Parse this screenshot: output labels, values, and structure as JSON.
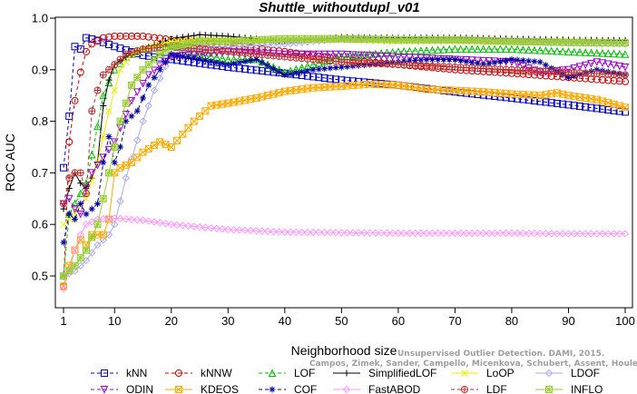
{
  "chart_data": {
    "type": "line",
    "title": "Shuttle_withoutdupl_v01",
    "xlabel": "Neighborhood size",
    "ylabel": "ROC AUC",
    "xlim": [
      1,
      100
    ],
    "ylim": [
      0.46,
      1.0
    ],
    "xticks": [
      1,
      10,
      20,
      30,
      40,
      50,
      60,
      70,
      80,
      90,
      100
    ],
    "yticks": [
      0.5,
      0.6,
      0.7,
      0.8,
      0.9,
      1.0
    ],
    "grid": false,
    "legend_position": "bottom",
    "watermark": [
      "Unsupervised Outlier Detection. DAMI, 2015.",
      "Campos, Zimek, Sander, Campello, Micenkova, Schubert, Assent, Houle"
    ],
    "series": [
      {
        "name": "kNN",
        "color": "#0000cc",
        "marker": "square",
        "dash": "4,3",
        "points": [
          [
            1,
            0.71
          ],
          [
            2,
            0.81
          ],
          [
            3,
            0.945
          ],
          [
            4,
            0.94
          ],
          [
            5,
            0.962
          ],
          [
            7,
            0.957
          ],
          [
            10,
            0.945
          ],
          [
            15,
            0.928
          ],
          [
            20,
            0.92
          ],
          [
            30,
            0.905
          ],
          [
            40,
            0.893
          ],
          [
            50,
            0.88
          ],
          [
            60,
            0.87
          ],
          [
            70,
            0.857
          ],
          [
            80,
            0.845
          ],
          [
            90,
            0.832
          ],
          [
            100,
            0.818
          ]
        ]
      },
      {
        "name": "kNNW",
        "color": "#cc0000",
        "marker": "circle",
        "dash": "4,3",
        "points": [
          [
            1,
            0.48
          ],
          [
            2,
            0.76
          ],
          [
            3,
            0.84
          ],
          [
            4,
            0.895
          ],
          [
            5,
            0.935
          ],
          [
            6,
            0.95
          ],
          [
            8,
            0.962
          ],
          [
            10,
            0.965
          ],
          [
            15,
            0.965
          ],
          [
            20,
            0.958
          ],
          [
            30,
            0.948
          ],
          [
            40,
            0.935
          ],
          [
            50,
            0.92
          ],
          [
            60,
            0.91
          ],
          [
            70,
            0.9
          ],
          [
            80,
            0.893
          ],
          [
            90,
            0.885
          ],
          [
            100,
            0.877
          ]
        ]
      },
      {
        "name": "LOF",
        "color": "#00bb00",
        "marker": "triangle",
        "dash": "4,3",
        "points": [
          [
            1,
            0.5
          ],
          [
            2,
            0.62
          ],
          [
            3,
            0.64
          ],
          [
            4,
            0.66
          ],
          [
            5,
            0.68
          ],
          [
            7,
            0.79
          ],
          [
            8,
            0.85
          ],
          [
            10,
            0.9
          ],
          [
            12,
            0.925
          ],
          [
            15,
            0.94
          ],
          [
            20,
            0.947
          ],
          [
            25,
            0.93
          ],
          [
            30,
            0.92
          ],
          [
            35,
            0.92
          ],
          [
            40,
            0.895
          ],
          [
            45,
            0.91
          ],
          [
            50,
            0.925
          ],
          [
            60,
            0.935
          ],
          [
            70,
            0.94
          ],
          [
            80,
            0.94
          ],
          [
            90,
            0.935
          ],
          [
            100,
            0.93
          ]
        ]
      },
      {
        "name": "SimplifiedLOF",
        "color": "#000000",
        "marker": "plus",
        "dash": "",
        "points": [
          [
            1,
            0.63
          ],
          [
            2,
            0.67
          ],
          [
            3,
            0.7
          ],
          [
            4,
            0.68
          ],
          [
            5,
            0.67
          ],
          [
            6,
            0.69
          ],
          [
            7,
            0.72
          ],
          [
            8,
            0.83
          ],
          [
            9,
            0.88
          ],
          [
            10,
            0.91
          ],
          [
            12,
            0.925
          ],
          [
            15,
            0.94
          ],
          [
            20,
            0.96
          ],
          [
            25,
            0.968
          ],
          [
            30,
            0.965
          ],
          [
            40,
            0.955
          ],
          [
            50,
            0.963
          ],
          [
            60,
            0.962
          ],
          [
            70,
            0.962
          ],
          [
            80,
            0.96
          ],
          [
            90,
            0.958
          ],
          [
            100,
            0.957
          ]
        ]
      },
      {
        "name": "LoOP",
        "color": "#eeee00",
        "marker": "x",
        "dash": "",
        "points": [
          [
            1,
            0.6
          ],
          [
            3,
            0.62
          ],
          [
            5,
            0.65
          ],
          [
            7,
            0.72
          ],
          [
            9,
            0.82
          ],
          [
            11,
            0.9
          ],
          [
            13,
            0.93
          ],
          [
            15,
            0.94
          ],
          [
            20,
            0.955
          ],
          [
            25,
            0.958
          ],
          [
            30,
            0.957
          ],
          [
            40,
            0.955
          ],
          [
            50,
            0.958
          ],
          [
            60,
            0.955
          ],
          [
            70,
            0.955
          ],
          [
            80,
            0.953
          ],
          [
            90,
            0.955
          ],
          [
            100,
            0.952
          ]
        ]
      },
      {
        "name": "LDOF",
        "color": "#aaaaee",
        "marker": "diamond",
        "dash": "",
        "points": [
          [
            1,
            0.5
          ],
          [
            3,
            0.51
          ],
          [
            5,
            0.53
          ],
          [
            7,
            0.56
          ],
          [
            9,
            0.58
          ],
          [
            10,
            0.6
          ],
          [
            12,
            0.69
          ],
          [
            15,
            0.8
          ],
          [
            17,
            0.86
          ],
          [
            20,
            0.93
          ],
          [
            25,
            0.945
          ],
          [
            30,
            0.945
          ],
          [
            40,
            0.95
          ],
          [
            50,
            0.96
          ],
          [
            60,
            0.96
          ],
          [
            70,
            0.958
          ],
          [
            80,
            0.955
          ],
          [
            90,
            0.952
          ],
          [
            100,
            0.95
          ]
        ]
      },
      {
        "name": "ODIN",
        "color": "#9900cc",
        "marker": "triangle-down",
        "dash": "4,3",
        "points": [
          [
            1,
            0.64
          ],
          [
            2,
            0.65
          ],
          [
            3,
            0.63
          ],
          [
            4,
            0.62
          ],
          [
            5,
            0.67
          ],
          [
            6,
            0.7
          ],
          [
            8,
            0.73
          ],
          [
            10,
            0.76
          ],
          [
            13,
            0.84
          ],
          [
            16,
            0.89
          ],
          [
            20,
            0.925
          ],
          [
            30,
            0.935
          ],
          [
            40,
            0.93
          ],
          [
            50,
            0.93
          ],
          [
            60,
            0.925
          ],
          [
            70,
            0.92
          ],
          [
            80,
            0.915
          ],
          [
            85,
            0.895
          ],
          [
            90,
            0.9
          ],
          [
            95,
            0.915
          ],
          [
            100,
            0.905
          ]
        ]
      },
      {
        "name": "KDEOS",
        "color": "#ffaa00",
        "marker": "boxx",
        "dash": "",
        "points": [
          [
            1,
            0.48
          ],
          [
            2,
            0.52
          ],
          [
            3,
            0.55
          ],
          [
            4,
            0.57
          ],
          [
            5,
            0.56
          ],
          [
            6,
            0.58
          ],
          [
            8,
            0.58
          ],
          [
            9,
            0.61
          ],
          [
            10,
            0.7
          ],
          [
            11,
            0.71
          ],
          [
            13,
            0.72
          ],
          [
            15,
            0.74
          ],
          [
            18,
            0.76
          ],
          [
            20,
            0.75
          ],
          [
            22,
            0.775
          ],
          [
            24,
            0.8
          ],
          [
            27,
            0.83
          ],
          [
            30,
            0.835
          ],
          [
            35,
            0.845
          ],
          [
            40,
            0.858
          ],
          [
            45,
            0.865
          ],
          [
            50,
            0.868
          ],
          [
            55,
            0.872
          ],
          [
            60,
            0.87
          ],
          [
            65,
            0.862
          ],
          [
            70,
            0.86
          ],
          [
            75,
            0.857
          ],
          [
            80,
            0.853
          ],
          [
            85,
            0.85
          ],
          [
            88,
            0.855
          ],
          [
            90,
            0.85
          ],
          [
            95,
            0.842
          ],
          [
            100,
            0.827
          ]
        ]
      },
      {
        "name": "COF",
        "color": "#000099",
        "marker": "asterisk",
        "dash": "4,3",
        "points": [
          [
            1,
            0.565
          ],
          [
            2,
            0.62
          ],
          [
            3,
            0.61
          ],
          [
            4,
            0.64
          ],
          [
            5,
            0.62
          ],
          [
            6,
            0.63
          ],
          [
            7,
            0.64
          ],
          [
            8,
            0.72
          ],
          [
            9,
            0.77
          ],
          [
            10,
            0.72
          ],
          [
            11,
            0.75
          ],
          [
            12,
            0.8
          ],
          [
            14,
            0.82
          ],
          [
            16,
            0.87
          ],
          [
            18,
            0.9
          ],
          [
            20,
            0.93
          ],
          [
            25,
            0.92
          ],
          [
            30,
            0.91
          ],
          [
            35,
            0.92
          ],
          [
            40,
            0.89
          ],
          [
            45,
            0.9
          ],
          [
            50,
            0.905
          ],
          [
            55,
            0.91
          ],
          [
            60,
            0.915
          ],
          [
            65,
            0.92
          ],
          [
            70,
            0.92
          ],
          [
            75,
            0.91
          ],
          [
            80,
            0.92
          ],
          [
            85,
            0.915
          ],
          [
            90,
            0.885
          ],
          [
            95,
            0.9
          ],
          [
            100,
            0.89
          ]
        ]
      },
      {
        "name": "FastABOD",
        "color": "#ff99ff",
        "marker": "diamond",
        "dash": "",
        "points": [
          [
            1,
            0.475
          ],
          [
            2,
            0.51
          ],
          [
            3,
            0.55
          ],
          [
            4,
            0.58
          ],
          [
            5,
            0.6
          ],
          [
            7,
            0.61
          ],
          [
            10,
            0.612
          ],
          [
            15,
            0.608
          ],
          [
            20,
            0.6
          ],
          [
            30,
            0.59
          ],
          [
            40,
            0.585
          ],
          [
            50,
            0.584
          ],
          [
            60,
            0.583
          ],
          [
            70,
            0.583
          ],
          [
            80,
            0.583
          ],
          [
            90,
            0.582
          ],
          [
            100,
            0.582
          ]
        ]
      },
      {
        "name": "LDF",
        "color": "#bb3333",
        "marker": "circle-plus",
        "dash": "4,3",
        "points": [
          [
            1,
            0.64
          ],
          [
            2,
            0.69
          ],
          [
            3,
            0.7
          ],
          [
            4,
            0.7
          ],
          [
            5,
            0.66
          ],
          [
            6,
            0.82
          ],
          [
            7,
            0.86
          ],
          [
            8,
            0.89
          ],
          [
            10,
            0.91
          ],
          [
            12,
            0.93
          ],
          [
            15,
            0.94
          ],
          [
            20,
            0.945
          ],
          [
            25,
            0.94
          ],
          [
            30,
            0.935
          ],
          [
            40,
            0.925
          ],
          [
            50,
            0.915
          ],
          [
            60,
            0.91
          ],
          [
            70,
            0.905
          ],
          [
            80,
            0.9
          ],
          [
            90,
            0.895
          ],
          [
            100,
            0.89
          ]
        ]
      },
      {
        "name": "INFLO",
        "color": "#99cc33",
        "marker": "boxcross",
        "dash": "",
        "points": [
          [
            1,
            0.5
          ],
          [
            3,
            0.52
          ],
          [
            5,
            0.55
          ],
          [
            7,
            0.6
          ],
          [
            9,
            0.7
          ],
          [
            11,
            0.8
          ],
          [
            13,
            0.87
          ],
          [
            15,
            0.9
          ],
          [
            18,
            0.93
          ],
          [
            20,
            0.945
          ],
          [
            25,
            0.955
          ],
          [
            30,
            0.955
          ],
          [
            40,
            0.96
          ],
          [
            50,
            0.96
          ],
          [
            60,
            0.958
          ],
          [
            70,
            0.958
          ],
          [
            80,
            0.955
          ],
          [
            90,
            0.953
          ],
          [
            100,
            0.952
          ]
        ]
      }
    ]
  }
}
